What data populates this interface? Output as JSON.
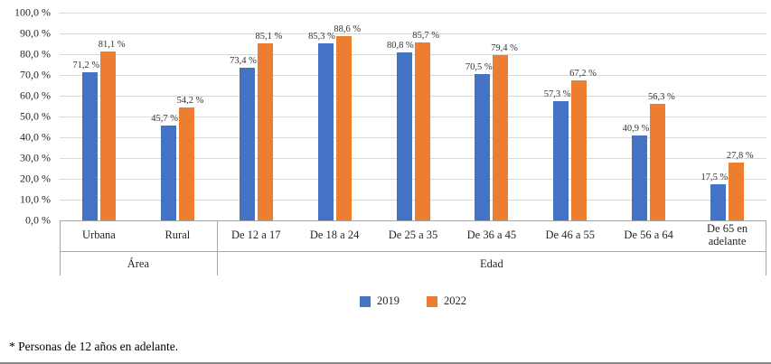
{
  "chart_data": {
    "type": "bar",
    "title": "",
    "xlabel": "",
    "ylabel": "",
    "ylim": [
      0,
      100
    ],
    "grid": true,
    "legend_position": "bottom",
    "group_axis": [
      {
        "label": "Área",
        "span": 2
      },
      {
        "label": "Edad",
        "span": 7
      }
    ],
    "categories": [
      "Urbana",
      "Rural",
      "De 12 a 17",
      "De 18 a 24",
      "De 25 a 35",
      "De 36 a 45",
      "De 46 a 55",
      "De 56 a 64",
      "De 65 en adelante"
    ],
    "yticks": [
      "100,0 %",
      "90,0 %",
      "80,0 %",
      "70,0 %",
      "60,0 %",
      "50,0 %",
      "40,0 %",
      "30,0 %",
      "20,0 %",
      "10,0 %",
      "0,0 %"
    ],
    "series": [
      {
        "name": "2019",
        "color": "#4472C4",
        "values": [
          71.2,
          45.7,
          73.4,
          85.3,
          80.8,
          70.5,
          57.3,
          40.9,
          17.5
        ],
        "labels": [
          "71,2 %",
          "45,7 %",
          "73,4 %",
          "85,3 %",
          "80,8 %",
          "70,5 %",
          "57,3 %",
          "40,9 %",
          "17,5 %"
        ]
      },
      {
        "name": "2022",
        "color": "#ED7D31",
        "values": [
          81.1,
          54.2,
          85.1,
          88.6,
          85.7,
          79.4,
          67.2,
          56.3,
          27.8
        ],
        "labels": [
          "81,1 %",
          "54,2 %",
          "85,1 %",
          "88,6 %",
          "85,7 %",
          "79,4 %",
          "67,2 %",
          "56,3 %",
          "27,8 %"
        ]
      }
    ]
  },
  "footnote": "* Personas de 12 años en adelante."
}
